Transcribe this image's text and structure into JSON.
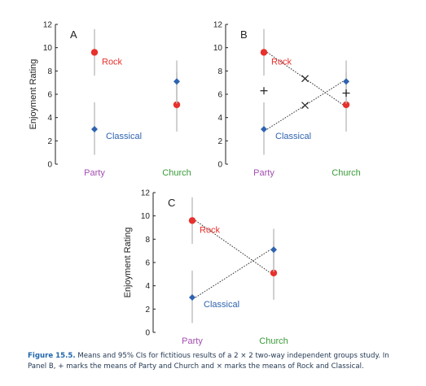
{
  "chart_data": {
    "type": "scatter",
    "description_free": true,
    "ylabel": "Enjoyment Rating",
    "ylim": [
      0,
      12
    ],
    "yticks": [
      0,
      2,
      4,
      6,
      8,
      10,
      12
    ],
    "categories": [
      "Party",
      "Church"
    ],
    "colors": {
      "rock": "#e8302c",
      "classical": "#2f63b0",
      "party_label": "#a24fb0",
      "church_label": "#3a9b3a",
      "ci": "#bdbdbd"
    },
    "panels": [
      {
        "label": "A",
        "show_ylabel": true,
        "series": [
          {
            "name": "Rock",
            "color": "#e8302c",
            "marker": "circle",
            "points": [
              {
                "x": "Party",
                "y": 9.6,
                "ci": [
                  7.6,
                  11.6
                ]
              },
              {
                "x": "Church",
                "y": 5.1,
                "ci": [
                  2.8,
                  7.9
                ]
              }
            ],
            "connect": false
          },
          {
            "name": "Classical",
            "color": "#2f63b0",
            "marker": "diamond",
            "points": [
              {
                "x": "Party",
                "y": 3.0,
                "ci": [
                  0.8,
                  5.3
                ]
              },
              {
                "x": "Church",
                "y": 7.1,
                "ci": [
                  5.2,
                  8.9
                ]
              }
            ],
            "connect": false
          }
        ],
        "plus_marks": [],
        "cross_marks": []
      },
      {
        "label": "B",
        "show_ylabel": false,
        "series": [
          {
            "name": "Rock",
            "color": "#e8302c",
            "marker": "circle",
            "points": [
              {
                "x": "Party",
                "y": 9.6,
                "ci": [
                  7.6,
                  11.6
                ]
              },
              {
                "x": "Church",
                "y": 5.1,
                "ci": [
                  2.8,
                  7.9
                ]
              }
            ],
            "connect": true
          },
          {
            "name": "Classical",
            "color": "#2f63b0",
            "marker": "diamond",
            "points": [
              {
                "x": "Party",
                "y": 3.0,
                "ci": [
                  0.8,
                  5.3
                ]
              },
              {
                "x": "Church",
                "y": 7.1,
                "ci": [
                  5.2,
                  8.9
                ]
              }
            ],
            "connect": true
          }
        ],
        "plus_marks": [
          {
            "x": "Party",
            "y": 6.3
          },
          {
            "x": "Church",
            "y": 6.1
          }
        ],
        "cross_marks": [
          {
            "x": 0.5,
            "y": 7.35
          },
          {
            "x": 0.5,
            "y": 5.05
          }
        ]
      },
      {
        "label": "C",
        "show_ylabel": true,
        "series": [
          {
            "name": "Rock",
            "color": "#e8302c",
            "marker": "circle",
            "points": [
              {
                "x": "Party",
                "y": 9.6,
                "ci": [
                  7.6,
                  11.6
                ]
              },
              {
                "x": "Church",
                "y": 5.1,
                "ci": [
                  2.8,
                  7.9
                ]
              }
            ],
            "connect": true
          },
          {
            "name": "Classical",
            "color": "#2f63b0",
            "marker": "diamond",
            "points": [
              {
                "x": "Party",
                "y": 3.0,
                "ci": [
                  0.8,
                  5.3
                ]
              },
              {
                "x": "Church",
                "y": 7.1,
                "ci": [
                  5.2,
                  8.9
                ]
              }
            ],
            "connect": true
          }
        ],
        "plus_marks": [],
        "cross_marks": []
      }
    ]
  },
  "caption": {
    "lead": "Figure 15.5.",
    "text": "Means and 95% CIs for fictitious results of a 2 × 2 two-way independent groups study. In Panel B, + marks the means of Party and Church and × marks the means of Rock and Classical."
  }
}
